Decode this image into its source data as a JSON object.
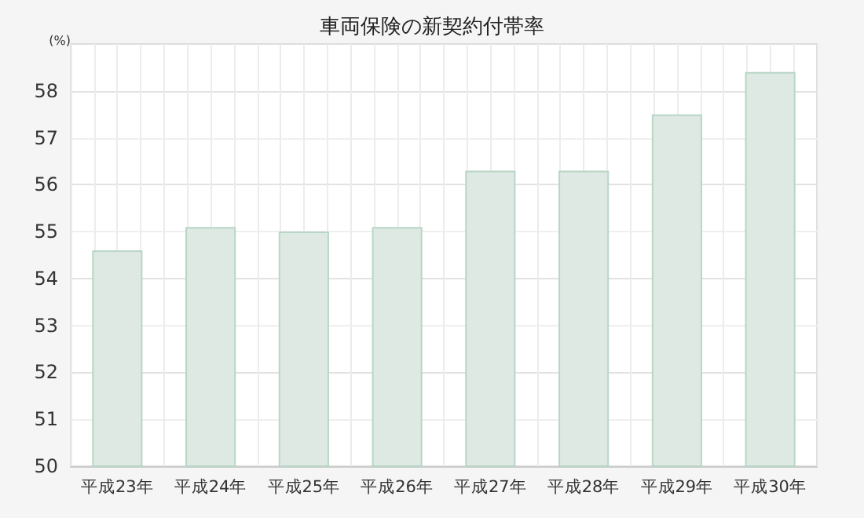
{
  "chart_data": {
    "type": "bar",
    "title": "車両保険の新契約付帯率",
    "ylabel": "(%)",
    "categories": [
      "平成23年",
      "平成24年",
      "平成25年",
      "平成26年",
      "平成27年",
      "平成28年",
      "平成29年",
      "平成30年"
    ],
    "values": [
      54.6,
      55.1,
      55.0,
      55.1,
      56.3,
      56.3,
      57.5,
      58.4
    ],
    "color": "#dde9e2",
    "ylim": [
      50,
      59
    ],
    "yticks": [
      50,
      51,
      52,
      53,
      54,
      55,
      56,
      57,
      58
    ],
    "grid": true
  }
}
